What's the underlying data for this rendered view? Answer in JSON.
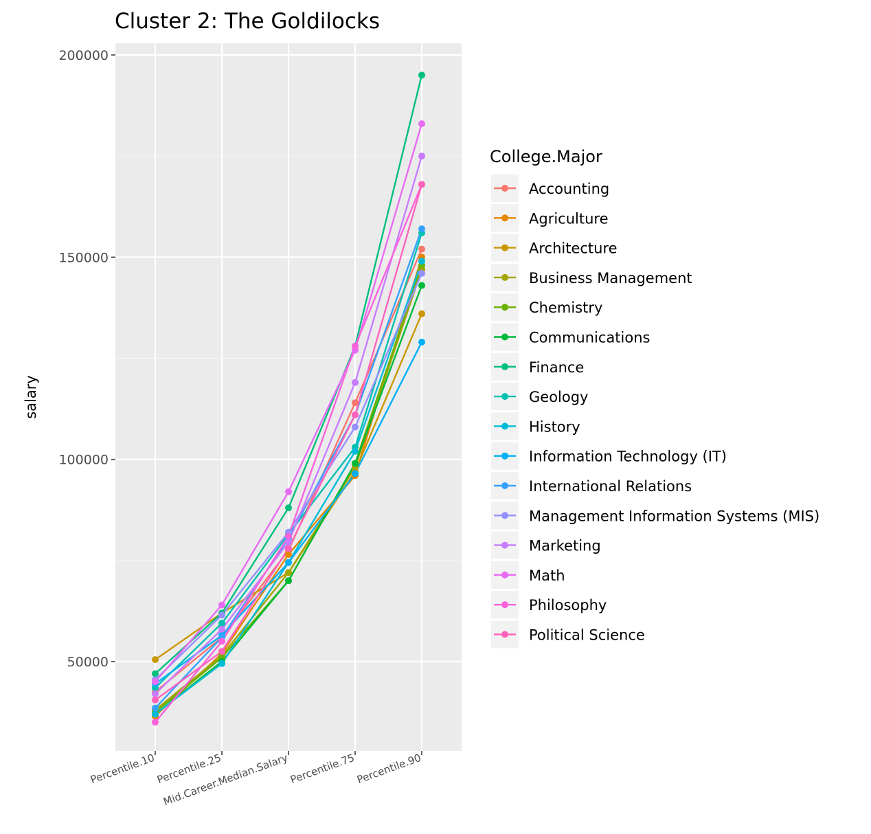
{
  "chart_data": {
    "type": "line",
    "title": "Cluster 2: The Goldilocks",
    "xlabel": "",
    "ylabel": "salary",
    "categories": [
      "Percentile.10",
      "Percentile.25",
      "Mid.Career.Median.Salary",
      "Percentile.75",
      "Percentile.90"
    ],
    "y_ticks": [
      "50000",
      "100000",
      "150000",
      "200000"
    ],
    "y_tick_values": [
      50000,
      100000,
      150000,
      200000
    ],
    "ylim": [
      28000,
      203000
    ],
    "grid": true,
    "legend_title": "College.Major",
    "legend_position": "right",
    "series": [
      {
        "name": "Accounting",
        "color": "#F8766D",
        "values": [
          42500,
          56000,
          77500,
          114000,
          152000
        ]
      },
      {
        "name": "Agriculture",
        "color": "#E58700",
        "values": [
          36500,
          52000,
          76500,
          96000,
          150000
        ]
      },
      {
        "name": "Architecture",
        "color": "#C99800",
        "values": [
          50500,
          62000,
          72000,
          97000,
          136000
        ]
      },
      {
        "name": "Business Management",
        "color": "#A3A500",
        "values": [
          38000,
          51500,
          72000,
          98000,
          147000
        ]
      },
      {
        "name": "Chemistry",
        "color": "#6BB100",
        "values": [
          37500,
          51000,
          70000,
          99000,
          148000
        ]
      },
      {
        "name": "Communications",
        "color": "#00BA38",
        "values": [
          37000,
          50000,
          70000,
          99000,
          143000
        ]
      },
      {
        "name": "Finance",
        "color": "#00BF7D",
        "values": [
          47000,
          62000,
          88000,
          128000,
          195000
        ]
      },
      {
        "name": "Geology",
        "color": "#00C0AF",
        "values": [
          43500,
          59500,
          81500,
          103000,
          156000
        ]
      },
      {
        "name": "History",
        "color": "#00BCD8",
        "values": [
          37000,
          49500,
          74500,
          102000,
          149000
        ]
      },
      {
        "name": "Information Technology (IT)",
        "color": "#00B0F6",
        "values": [
          44500,
          56500,
          74500,
          96500,
          129000
        ]
      },
      {
        "name": "International Relations",
        "color": "#35A2FF",
        "values": [
          38500,
          56000,
          80500,
          111000,
          157000
        ]
      },
      {
        "name": "Management Information Systems (MIS)",
        "color": "#9590FF",
        "values": [
          45500,
          61500,
          82000,
          108000,
          146000
        ]
      },
      {
        "name": "Marketing",
        "color": "#C77CFF",
        "values": [
          42000,
          58000,
          79500,
          119000,
          175000
        ]
      },
      {
        "name": "Math",
        "color": "#E76BF3",
        "values": [
          45000,
          64000,
          92000,
          127000,
          183000
        ]
      },
      {
        "name": "Philosophy",
        "color": "#FA62DB",
        "values": [
          35000,
          55000,
          81000,
          128000,
          168000
        ]
      },
      {
        "name": "Political Science",
        "color": "#FF62BC",
        "values": [
          40500,
          52500,
          78000,
          111000,
          168000
        ]
      }
    ]
  }
}
